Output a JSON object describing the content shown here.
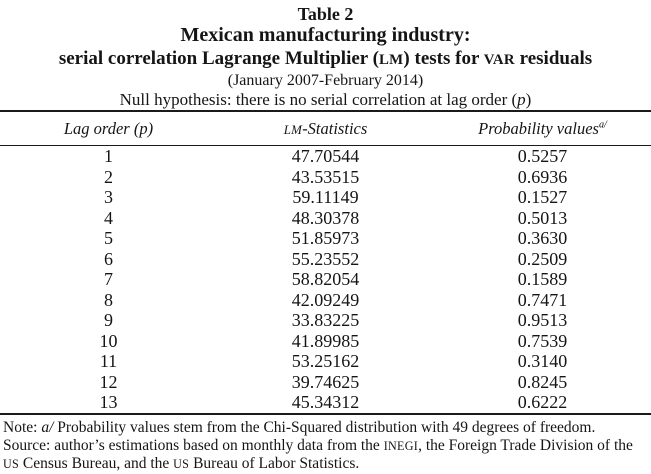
{
  "caption": {
    "label": "Table 2",
    "title_line1": "Mexican manufacturing industry:",
    "title_line2_pre": "serial correlation Lagrange Multiplier (",
    "title_line2_sc1": "LM",
    "title_line2_mid": ") tests for ",
    "title_line2_sc2": "VAR",
    "title_line2_post": " residuals",
    "date_range": "(January 2007-February 2014)",
    "null_hyp_pre": "Null hypothesis: there is no serial correlation at lag order (",
    "null_hyp_var": "p",
    "null_hyp_post": ")"
  },
  "table": {
    "header": {
      "col1": "Lag order (p)",
      "col2_sc": "LM",
      "col2_rest": "-Statistics",
      "col3": "Probability values",
      "col3_sup": "a/"
    },
    "rows": [
      {
        "lag": "1",
        "lm": "47.70544",
        "prob": "0.5257"
      },
      {
        "lag": "2",
        "lm": "43.53515",
        "prob": "0.6936"
      },
      {
        "lag": "3",
        "lm": "59.11149",
        "prob": "0.1527"
      },
      {
        "lag": "4",
        "lm": "48.30378",
        "prob": "0.5013"
      },
      {
        "lag": "5",
        "lm": "51.85973",
        "prob": "0.3630"
      },
      {
        "lag": "6",
        "lm": "55.23552",
        "prob": "0.2509"
      },
      {
        "lag": "7",
        "lm": "58.82054",
        "prob": "0.1589"
      },
      {
        "lag": "8",
        "lm": "42.09249",
        "prob": "0.7471"
      },
      {
        "lag": "9",
        "lm": "33.83225",
        "prob": "0.9513"
      },
      {
        "lag": "10",
        "lm": "41.89985",
        "prob": "0.7539"
      },
      {
        "lag": "11",
        "lm": "53.25162",
        "prob": "0.3140"
      },
      {
        "lag": "12",
        "lm": "39.74625",
        "prob": "0.8245"
      },
      {
        "lag": "13",
        "lm": "45.34312",
        "prob": "0.6222"
      }
    ]
  },
  "notes": {
    "note_prefix": "Note: ",
    "note_marker": "a/",
    "note_text": " Probability values stem from the Chi-Squared distribution with 49 degrees of freedom.",
    "source_p1": "Source: author’s estimations based on monthly data from the ",
    "source_sc1": "INEGI",
    "source_p2": ", the Foreign Trade Division of the ",
    "source_sc2": "US",
    "source_p3": " Census Bureau, and the ",
    "source_sc3": "US",
    "source_p4": " Bureau of Labor Statistics."
  },
  "colors": {
    "text": "#151515",
    "rule": "#1a1a1a",
    "background": "#ffffff"
  }
}
